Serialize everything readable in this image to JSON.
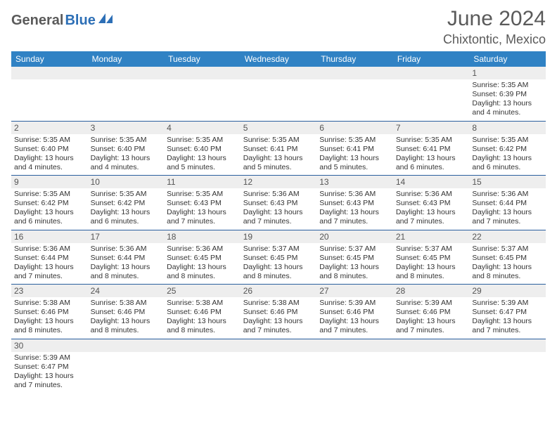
{
  "logo": {
    "general": "General",
    "blue": "Blue"
  },
  "header": {
    "month_title": "June 2024",
    "location": "Chixtontic, Mexico"
  },
  "colors": {
    "header_bg": "#3082c4",
    "header_text": "#ffffff",
    "daynum_bg": "#eeeeee",
    "border": "#2a5f9e",
    "text": "#333333",
    "logo_gray": "#5a5a5a",
    "logo_blue": "#2d6fb6"
  },
  "days_of_week": [
    "Sunday",
    "Monday",
    "Tuesday",
    "Wednesday",
    "Thursday",
    "Friday",
    "Saturday"
  ],
  "weeks": [
    {
      "nums": [
        "",
        "",
        "",
        "",
        "",
        "",
        "1"
      ],
      "data": [
        null,
        null,
        null,
        null,
        null,
        null,
        {
          "sunrise": "Sunrise: 5:35 AM",
          "sunset": "Sunset: 6:39 PM",
          "dl1": "Daylight: 13 hours",
          "dl2": "and 4 minutes."
        }
      ]
    },
    {
      "nums": [
        "2",
        "3",
        "4",
        "5",
        "6",
        "7",
        "8"
      ],
      "data": [
        {
          "sunrise": "Sunrise: 5:35 AM",
          "sunset": "Sunset: 6:40 PM",
          "dl1": "Daylight: 13 hours",
          "dl2": "and 4 minutes."
        },
        {
          "sunrise": "Sunrise: 5:35 AM",
          "sunset": "Sunset: 6:40 PM",
          "dl1": "Daylight: 13 hours",
          "dl2": "and 4 minutes."
        },
        {
          "sunrise": "Sunrise: 5:35 AM",
          "sunset": "Sunset: 6:40 PM",
          "dl1": "Daylight: 13 hours",
          "dl2": "and 5 minutes."
        },
        {
          "sunrise": "Sunrise: 5:35 AM",
          "sunset": "Sunset: 6:41 PM",
          "dl1": "Daylight: 13 hours",
          "dl2": "and 5 minutes."
        },
        {
          "sunrise": "Sunrise: 5:35 AM",
          "sunset": "Sunset: 6:41 PM",
          "dl1": "Daylight: 13 hours",
          "dl2": "and 5 minutes."
        },
        {
          "sunrise": "Sunrise: 5:35 AM",
          "sunset": "Sunset: 6:41 PM",
          "dl1": "Daylight: 13 hours",
          "dl2": "and 6 minutes."
        },
        {
          "sunrise": "Sunrise: 5:35 AM",
          "sunset": "Sunset: 6:42 PM",
          "dl1": "Daylight: 13 hours",
          "dl2": "and 6 minutes."
        }
      ]
    },
    {
      "nums": [
        "9",
        "10",
        "11",
        "12",
        "13",
        "14",
        "15"
      ],
      "data": [
        {
          "sunrise": "Sunrise: 5:35 AM",
          "sunset": "Sunset: 6:42 PM",
          "dl1": "Daylight: 13 hours",
          "dl2": "and 6 minutes."
        },
        {
          "sunrise": "Sunrise: 5:35 AM",
          "sunset": "Sunset: 6:42 PM",
          "dl1": "Daylight: 13 hours",
          "dl2": "and 6 minutes."
        },
        {
          "sunrise": "Sunrise: 5:35 AM",
          "sunset": "Sunset: 6:43 PM",
          "dl1": "Daylight: 13 hours",
          "dl2": "and 7 minutes."
        },
        {
          "sunrise": "Sunrise: 5:36 AM",
          "sunset": "Sunset: 6:43 PM",
          "dl1": "Daylight: 13 hours",
          "dl2": "and 7 minutes."
        },
        {
          "sunrise": "Sunrise: 5:36 AM",
          "sunset": "Sunset: 6:43 PM",
          "dl1": "Daylight: 13 hours",
          "dl2": "and 7 minutes."
        },
        {
          "sunrise": "Sunrise: 5:36 AM",
          "sunset": "Sunset: 6:43 PM",
          "dl1": "Daylight: 13 hours",
          "dl2": "and 7 minutes."
        },
        {
          "sunrise": "Sunrise: 5:36 AM",
          "sunset": "Sunset: 6:44 PM",
          "dl1": "Daylight: 13 hours",
          "dl2": "and 7 minutes."
        }
      ]
    },
    {
      "nums": [
        "16",
        "17",
        "18",
        "19",
        "20",
        "21",
        "22"
      ],
      "data": [
        {
          "sunrise": "Sunrise: 5:36 AM",
          "sunset": "Sunset: 6:44 PM",
          "dl1": "Daylight: 13 hours",
          "dl2": "and 7 minutes."
        },
        {
          "sunrise": "Sunrise: 5:36 AM",
          "sunset": "Sunset: 6:44 PM",
          "dl1": "Daylight: 13 hours",
          "dl2": "and 8 minutes."
        },
        {
          "sunrise": "Sunrise: 5:36 AM",
          "sunset": "Sunset: 6:45 PM",
          "dl1": "Daylight: 13 hours",
          "dl2": "and 8 minutes."
        },
        {
          "sunrise": "Sunrise: 5:37 AM",
          "sunset": "Sunset: 6:45 PM",
          "dl1": "Daylight: 13 hours",
          "dl2": "and 8 minutes."
        },
        {
          "sunrise": "Sunrise: 5:37 AM",
          "sunset": "Sunset: 6:45 PM",
          "dl1": "Daylight: 13 hours",
          "dl2": "and 8 minutes."
        },
        {
          "sunrise": "Sunrise: 5:37 AM",
          "sunset": "Sunset: 6:45 PM",
          "dl1": "Daylight: 13 hours",
          "dl2": "and 8 minutes."
        },
        {
          "sunrise": "Sunrise: 5:37 AM",
          "sunset": "Sunset: 6:45 PM",
          "dl1": "Daylight: 13 hours",
          "dl2": "and 8 minutes."
        }
      ]
    },
    {
      "nums": [
        "23",
        "24",
        "25",
        "26",
        "27",
        "28",
        "29"
      ],
      "data": [
        {
          "sunrise": "Sunrise: 5:38 AM",
          "sunset": "Sunset: 6:46 PM",
          "dl1": "Daylight: 13 hours",
          "dl2": "and 8 minutes."
        },
        {
          "sunrise": "Sunrise: 5:38 AM",
          "sunset": "Sunset: 6:46 PM",
          "dl1": "Daylight: 13 hours",
          "dl2": "and 8 minutes."
        },
        {
          "sunrise": "Sunrise: 5:38 AM",
          "sunset": "Sunset: 6:46 PM",
          "dl1": "Daylight: 13 hours",
          "dl2": "and 8 minutes."
        },
        {
          "sunrise": "Sunrise: 5:38 AM",
          "sunset": "Sunset: 6:46 PM",
          "dl1": "Daylight: 13 hours",
          "dl2": "and 7 minutes."
        },
        {
          "sunrise": "Sunrise: 5:39 AM",
          "sunset": "Sunset: 6:46 PM",
          "dl1": "Daylight: 13 hours",
          "dl2": "and 7 minutes."
        },
        {
          "sunrise": "Sunrise: 5:39 AM",
          "sunset": "Sunset: 6:46 PM",
          "dl1": "Daylight: 13 hours",
          "dl2": "and 7 minutes."
        },
        {
          "sunrise": "Sunrise: 5:39 AM",
          "sunset": "Sunset: 6:47 PM",
          "dl1": "Daylight: 13 hours",
          "dl2": "and 7 minutes."
        }
      ]
    },
    {
      "nums": [
        "30",
        "",
        "",
        "",
        "",
        "",
        ""
      ],
      "data": [
        {
          "sunrise": "Sunrise: 5:39 AM",
          "sunset": "Sunset: 6:47 PM",
          "dl1": "Daylight: 13 hours",
          "dl2": "and 7 minutes."
        },
        null,
        null,
        null,
        null,
        null,
        null
      ]
    }
  ]
}
